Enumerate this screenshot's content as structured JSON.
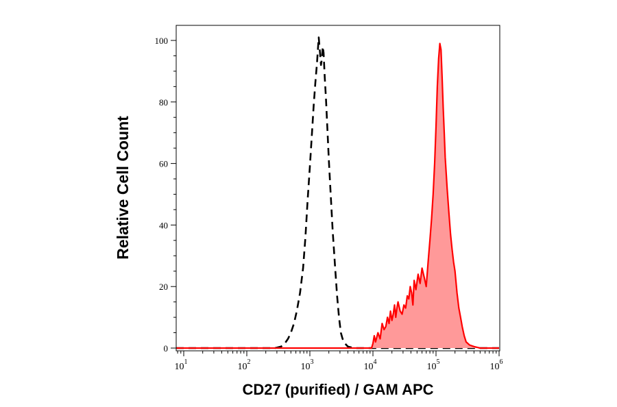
{
  "chart_data": {
    "type": "area",
    "title": "",
    "xlabel": "CD27 (purified) / GAM APC",
    "ylabel": "Relative Cell Count",
    "x_scale": "log",
    "xlim": [
      10,
      1000000
    ],
    "ylim": [
      0,
      100
    ],
    "x_ticks": [
      {
        "value": 10,
        "base": "10",
        "exp": "1"
      },
      {
        "value": 100,
        "base": "10",
        "exp": "2"
      },
      {
        "value": 1000,
        "base": "10",
        "exp": "3"
      },
      {
        "value": 10000,
        "base": "10",
        "exp": "4"
      },
      {
        "value": 100000,
        "base": "10",
        "exp": "5"
      },
      {
        "value": 1000000,
        "base": "10",
        "exp": "6"
      }
    ],
    "y_ticks": [
      0,
      20,
      40,
      60,
      80,
      100
    ],
    "grid": false,
    "legend": "none",
    "series": [
      {
        "style": "dashed-line",
        "color": "#000000",
        "x": [
          5,
          100,
          280,
          350,
          400,
          450,
          500,
          560,
          620,
          700,
          780,
          850,
          920,
          1000,
          1080,
          1150,
          1220,
          1300,
          1380,
          1450,
          1500,
          1550,
          1600,
          1650,
          1720,
          1800,
          1900,
          2000,
          2150,
          2300,
          2500,
          2700,
          2900,
          3100,
          3300,
          3600,
          4000,
          5000,
          100000,
          1000000
        ],
        "y": [
          0,
          0,
          0,
          0.5,
          1.5,
          3,
          5,
          8,
          12,
          18,
          26,
          36,
          48,
          59,
          70,
          79,
          86,
          93,
          101,
          96,
          92,
          94,
          98,
          96,
          88,
          81,
          71,
          61,
          49,
          38,
          27,
          17,
          10,
          5,
          3,
          1.5,
          0.5,
          0,
          0,
          0
        ]
      },
      {
        "style": "filled-area",
        "color": "#ff0000",
        "fill": "#ff9999",
        "x": [
          5,
          8000,
          9500,
          10000,
          10500,
          11000,
          12000,
          13000,
          14000,
          15000,
          16000,
          17000,
          18000,
          19000,
          20000,
          21000,
          22000,
          23000,
          24000,
          25000,
          27000,
          29000,
          31000,
          33000,
          35000,
          37000,
          39000,
          41000,
          43000,
          45000,
          48000,
          52000,
          56000,
          60000,
          65000,
          70000,
          75000,
          80000,
          85000,
          90000,
          95000,
          100000,
          105000,
          110000,
          115000,
          120000,
          125000,
          130000,
          135000,
          140000,
          150000,
          160000,
          170000,
          180000,
          190000,
          200000,
          215000,
          230000,
          245000,
          260000,
          280000,
          300000,
          340000,
          400000,
          500000,
          1000000
        ],
        "y": [
          0,
          0,
          0,
          1.5,
          4,
          2,
          5,
          3,
          8,
          6,
          7,
          10,
          8,
          12,
          9,
          11,
          14,
          10,
          13,
          15,
          12,
          11,
          14,
          13,
          17,
          16,
          20,
          18,
          14,
          22,
          19,
          24,
          21,
          26,
          23,
          20,
          28,
          35,
          42,
          50,
          60,
          72,
          85,
          94,
          99,
          97,
          88,
          78,
          70,
          62,
          52,
          44,
          37,
          32,
          28,
          25,
          18,
          13,
          10,
          7,
          4,
          2,
          1,
          0.5,
          0,
          0
        ]
      }
    ]
  }
}
